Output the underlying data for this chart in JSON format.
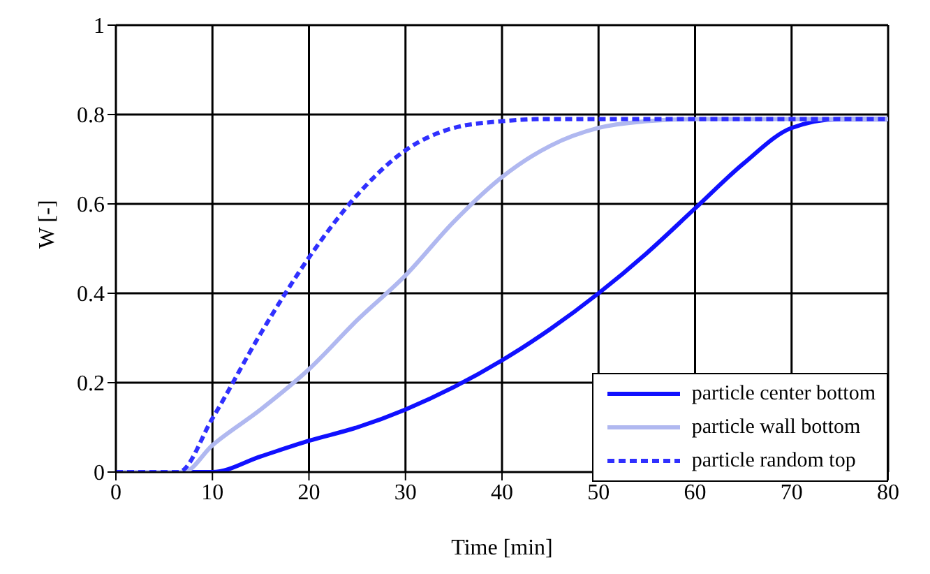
{
  "chart_data": {
    "type": "line",
    "xlabel": "Time [min]",
    "ylabel": "W [-]",
    "xlim": [
      0,
      80
    ],
    "xticks": [
      0,
      10,
      20,
      30,
      40,
      50,
      60,
      70,
      80
    ],
    "ylim": [
      0,
      1
    ],
    "yticks": [
      0,
      0.2,
      0.4,
      0.6,
      0.8,
      1
    ],
    "grid": true,
    "legend": "bottom right",
    "marker": "none",
    "series": [
      {
        "name": "particle center bottom",
        "color": "#1010ff",
        "line_style": "solid",
        "x": [
          0,
          10,
          15,
          20,
          25,
          30,
          35,
          40,
          45,
          50,
          55,
          60,
          65,
          70,
          75,
          80
        ],
        "values": [
          0,
          0,
          0.035,
          0.07,
          0.1,
          0.14,
          0.19,
          0.25,
          0.32,
          0.4,
          0.49,
          0.59,
          0.69,
          0.77,
          0.79,
          0.79
        ]
      },
      {
        "name": "particle wall bottom",
        "color": "#b0b8f0",
        "line_style": "solid",
        "x": [
          0,
          7,
          10,
          15,
          20,
          25,
          30,
          35,
          40,
          45,
          50,
          55,
          60,
          70,
          80
        ],
        "values": [
          0,
          0,
          0.06,
          0.14,
          0.23,
          0.34,
          0.44,
          0.56,
          0.66,
          0.73,
          0.77,
          0.785,
          0.79,
          0.79,
          0.79
        ]
      },
      {
        "name": "particle random top",
        "color": "#3030ff",
        "line_style": "dashed",
        "x": [
          0,
          6.5,
          10,
          15,
          20,
          25,
          30,
          35,
          40,
          45,
          50,
          60,
          70,
          80
        ],
        "values": [
          0,
          0,
          0.12,
          0.31,
          0.48,
          0.62,
          0.72,
          0.77,
          0.785,
          0.79,
          0.79,
          0.79,
          0.79,
          0.79
        ]
      }
    ]
  }
}
